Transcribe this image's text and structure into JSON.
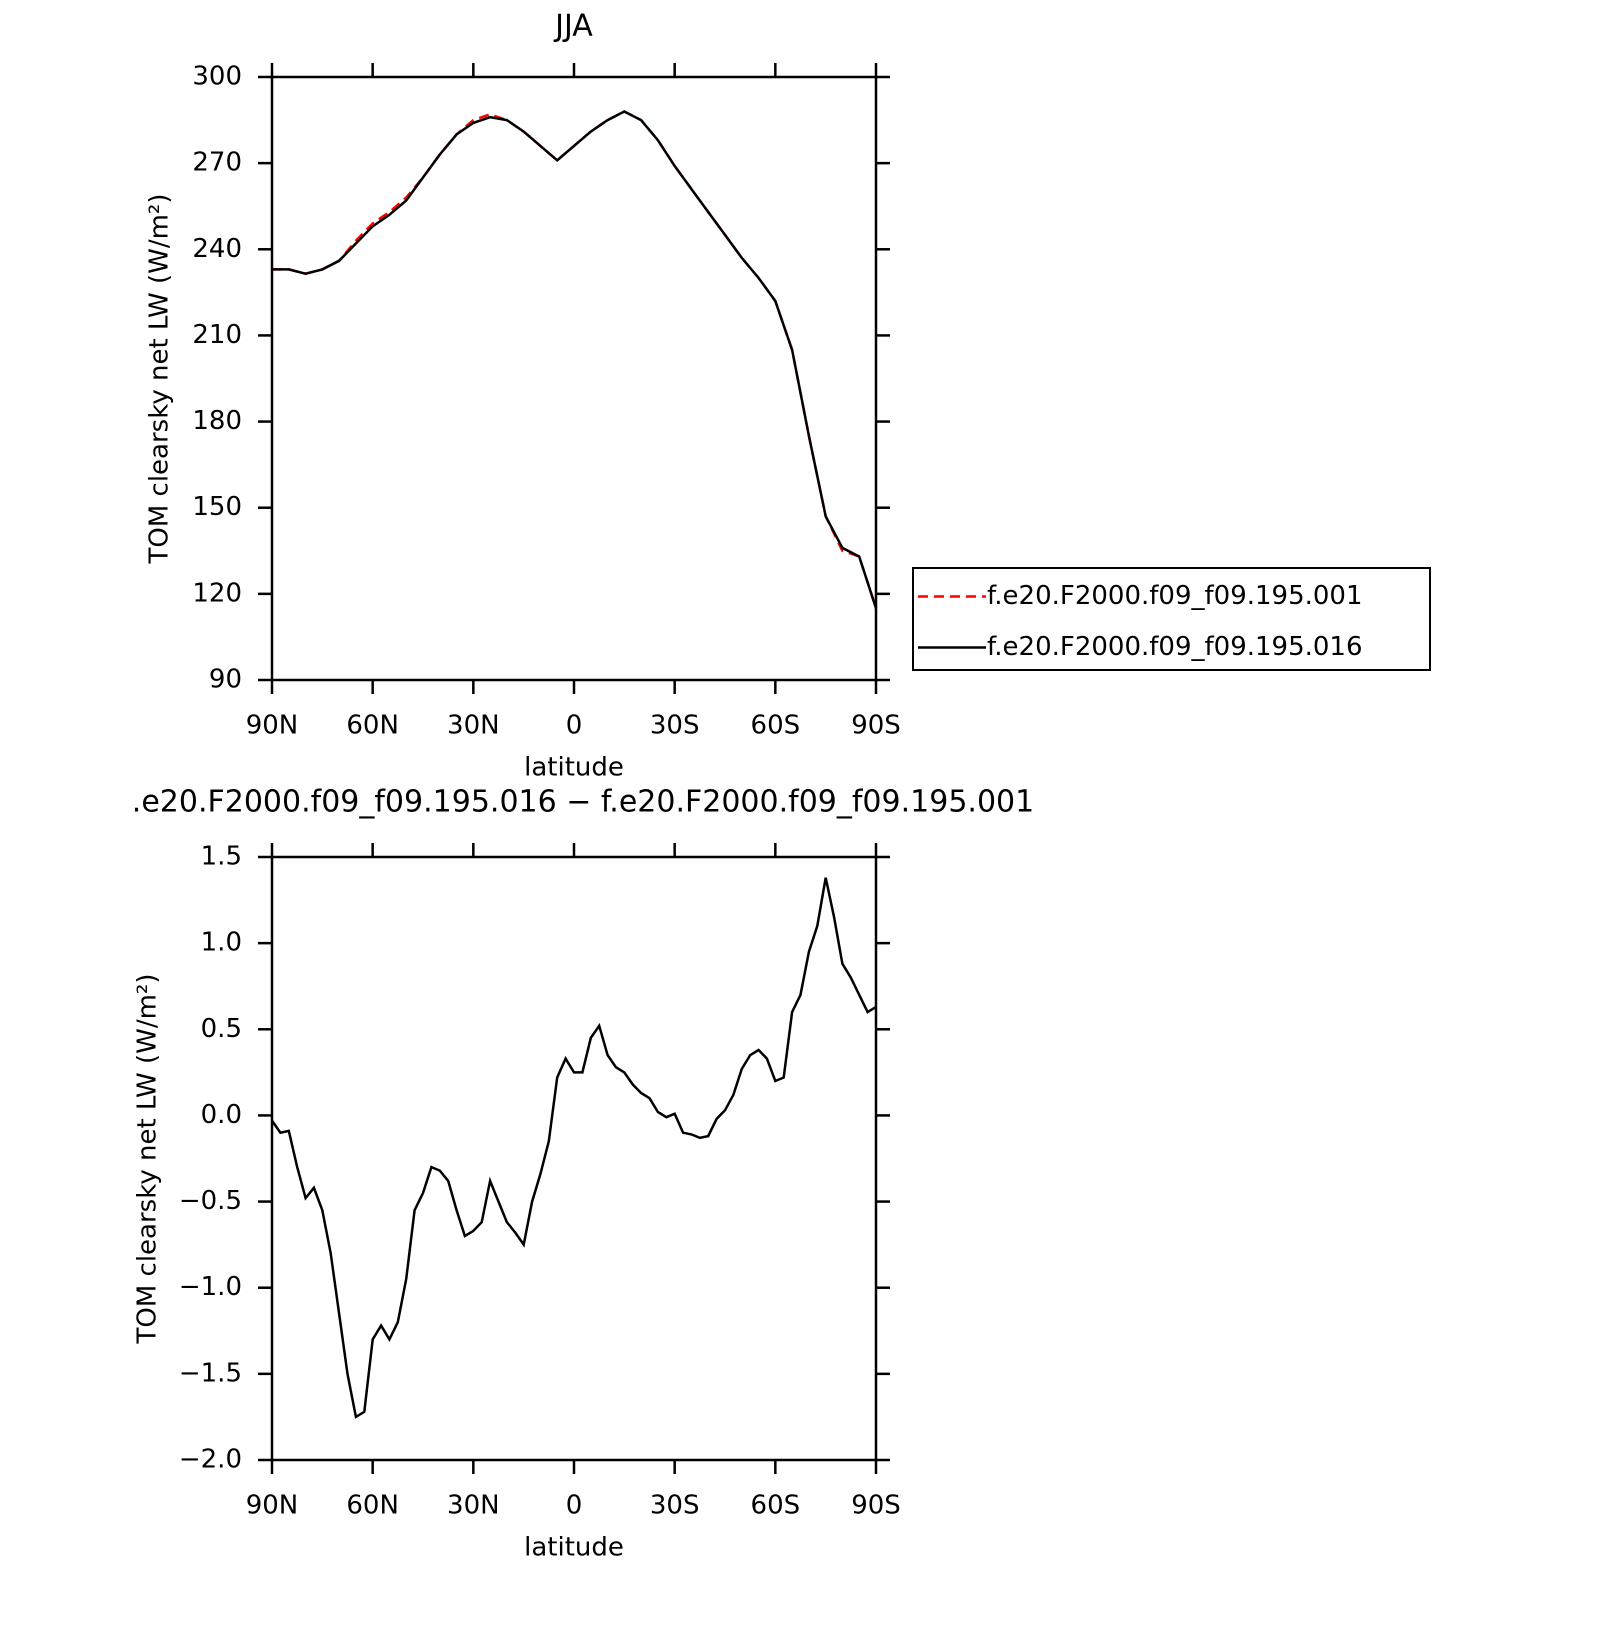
{
  "chart_data": [
    {
      "type": "line",
      "title": "JJA",
      "xlabel": "latitude",
      "ylabel": "TOM clearsky net LW (W/m²)",
      "x": [
        90,
        85,
        80,
        75,
        70,
        65,
        60,
        55,
        50,
        45,
        40,
        35,
        30,
        25,
        20,
        15,
        10,
        5,
        0,
        -5,
        -10,
        -15,
        -20,
        -25,
        -30,
        -35,
        -40,
        -45,
        -50,
        -55,
        -60,
        -65,
        -70,
        -75,
        -80,
        -85,
        -90
      ],
      "xlim": [
        90,
        -90
      ],
      "xticks": [
        {
          "value": 90,
          "label": "90N"
        },
        {
          "value": 60,
          "label": "60N"
        },
        {
          "value": 30,
          "label": "30N"
        },
        0,
        {
          "value": -30,
          "label": "30S"
        },
        {
          "value": -60,
          "label": "60S"
        },
        {
          "value": -90,
          "label": "90S"
        }
      ],
      "ylim": [
        90,
        300
      ],
      "yticks": [
        90,
        120,
        150,
        180,
        210,
        240,
        270,
        300
      ],
      "legend": "right",
      "series": [
        {
          "name": "f.e20.F2000.f09_f09.195.001",
          "color": "#ff0000",
          "dash": true,
          "values": [
            233,
            233,
            231.5,
            233,
            236,
            243,
            249,
            253,
            258,
            265,
            273,
            280,
            285,
            287,
            285,
            281,
            276,
            271,
            276,
            281,
            285,
            288,
            285,
            278,
            269,
            261,
            253,
            245,
            237,
            230,
            222,
            205,
            175,
            147,
            135,
            133,
            115
          ]
        },
        {
          "name": "f.e20.F2000.f09_f09.195.016",
          "color": "#000000",
          "dash": false,
          "values": [
            233,
            233,
            231.5,
            233,
            236,
            242,
            248,
            252,
            257,
            265,
            273,
            280,
            284,
            286,
            285,
            281,
            276,
            271,
            276,
            281,
            285,
            288,
            285,
            278,
            269,
            261,
            253,
            245,
            237,
            230,
            222,
            205,
            175,
            147,
            136,
            133,
            115
          ]
        }
      ]
    },
    {
      "type": "line",
      "title": ".e20.F2000.f09_f09.195.016 − f.e20.F2000.f09_f09.195.001",
      "xlabel": "latitude",
      "ylabel": "TOM clearsky net LW (W/m²)",
      "x": [
        90,
        87.5,
        85,
        82.5,
        80,
        77.5,
        75,
        72.5,
        70,
        67.5,
        65,
        62.5,
        60,
        57.5,
        55,
        52.5,
        50,
        47.5,
        45,
        42.5,
        40,
        37.5,
        35,
        32.5,
        30,
        27.5,
        25,
        22.5,
        20,
        17.5,
        15,
        12.5,
        10,
        7.5,
        5,
        2.5,
        0,
        -2.5,
        -5,
        -7.5,
        -10,
        -12.5,
        -15,
        -17.5,
        -20,
        -22.5,
        -25,
        -27.5,
        -30,
        -32.5,
        -35,
        -37.5,
        -40,
        -42.5,
        -45,
        -47.5,
        -50,
        -52.5,
        -55,
        -57.5,
        -60,
        -62.5,
        -65,
        -67.5,
        -70,
        -72.5,
        -75,
        -77.5,
        -80,
        -82.5,
        -85,
        -87.5,
        -90
      ],
      "xlim": [
        90,
        -90
      ],
      "xticks": [
        {
          "value": 90,
          "label": "90N"
        },
        {
          "value": 60,
          "label": "60N"
        },
        {
          "value": 30,
          "label": "30N"
        },
        0,
        {
          "value": -30,
          "label": "30S"
        },
        {
          "value": -60,
          "label": "60S"
        },
        {
          "value": -90,
          "label": "90S"
        }
      ],
      "ylim": [
        -2,
        1.5
      ],
      "yticks": [
        {
          "value": -2,
          "label": "−2.0"
        },
        {
          "value": -1.5,
          "label": "−1.5"
        },
        {
          "value": -1,
          "label": "−1.0"
        },
        {
          "value": -0.5,
          "label": "−0.5"
        },
        {
          "value": 0,
          "label": "0.0"
        },
        0.5,
        {
          "value": 1,
          "label": "1.0"
        },
        1.5
      ],
      "series": [
        {
          "color": "#000000",
          "dash": false,
          "values": [
            -0.03,
            -0.1,
            -0.09,
            -0.3,
            -0.48,
            -0.42,
            -0.55,
            -0.8,
            -1.15,
            -1.5,
            -1.75,
            -1.72,
            -1.3,
            -1.22,
            -1.3,
            -1.2,
            -0.95,
            -0.55,
            -0.45,
            -0.3,
            -0.32,
            -0.38,
            -0.55,
            -0.7,
            -0.67,
            -0.62,
            -0.38,
            -0.5,
            -0.62,
            -0.68,
            -0.75,
            -0.5,
            -0.34,
            -0.15,
            0.22,
            0.33,
            0.25,
            0.25,
            0.45,
            0.52,
            0.35,
            0.28,
            0.25,
            0.18,
            0.13,
            0.1,
            0.02,
            -0.01,
            0.01,
            -0.1,
            -0.11,
            -0.13,
            -0.12,
            -0.02,
            0.03,
            0.12,
            0.27,
            0.35,
            0.38,
            0.33,
            0.2,
            0.22,
            0.6,
            0.7,
            0.95,
            1.1,
            1.38,
            1.15,
            0.88,
            0.8,
            0.7,
            0.6,
            0.63
          ]
        }
      ]
    }
  ]
}
